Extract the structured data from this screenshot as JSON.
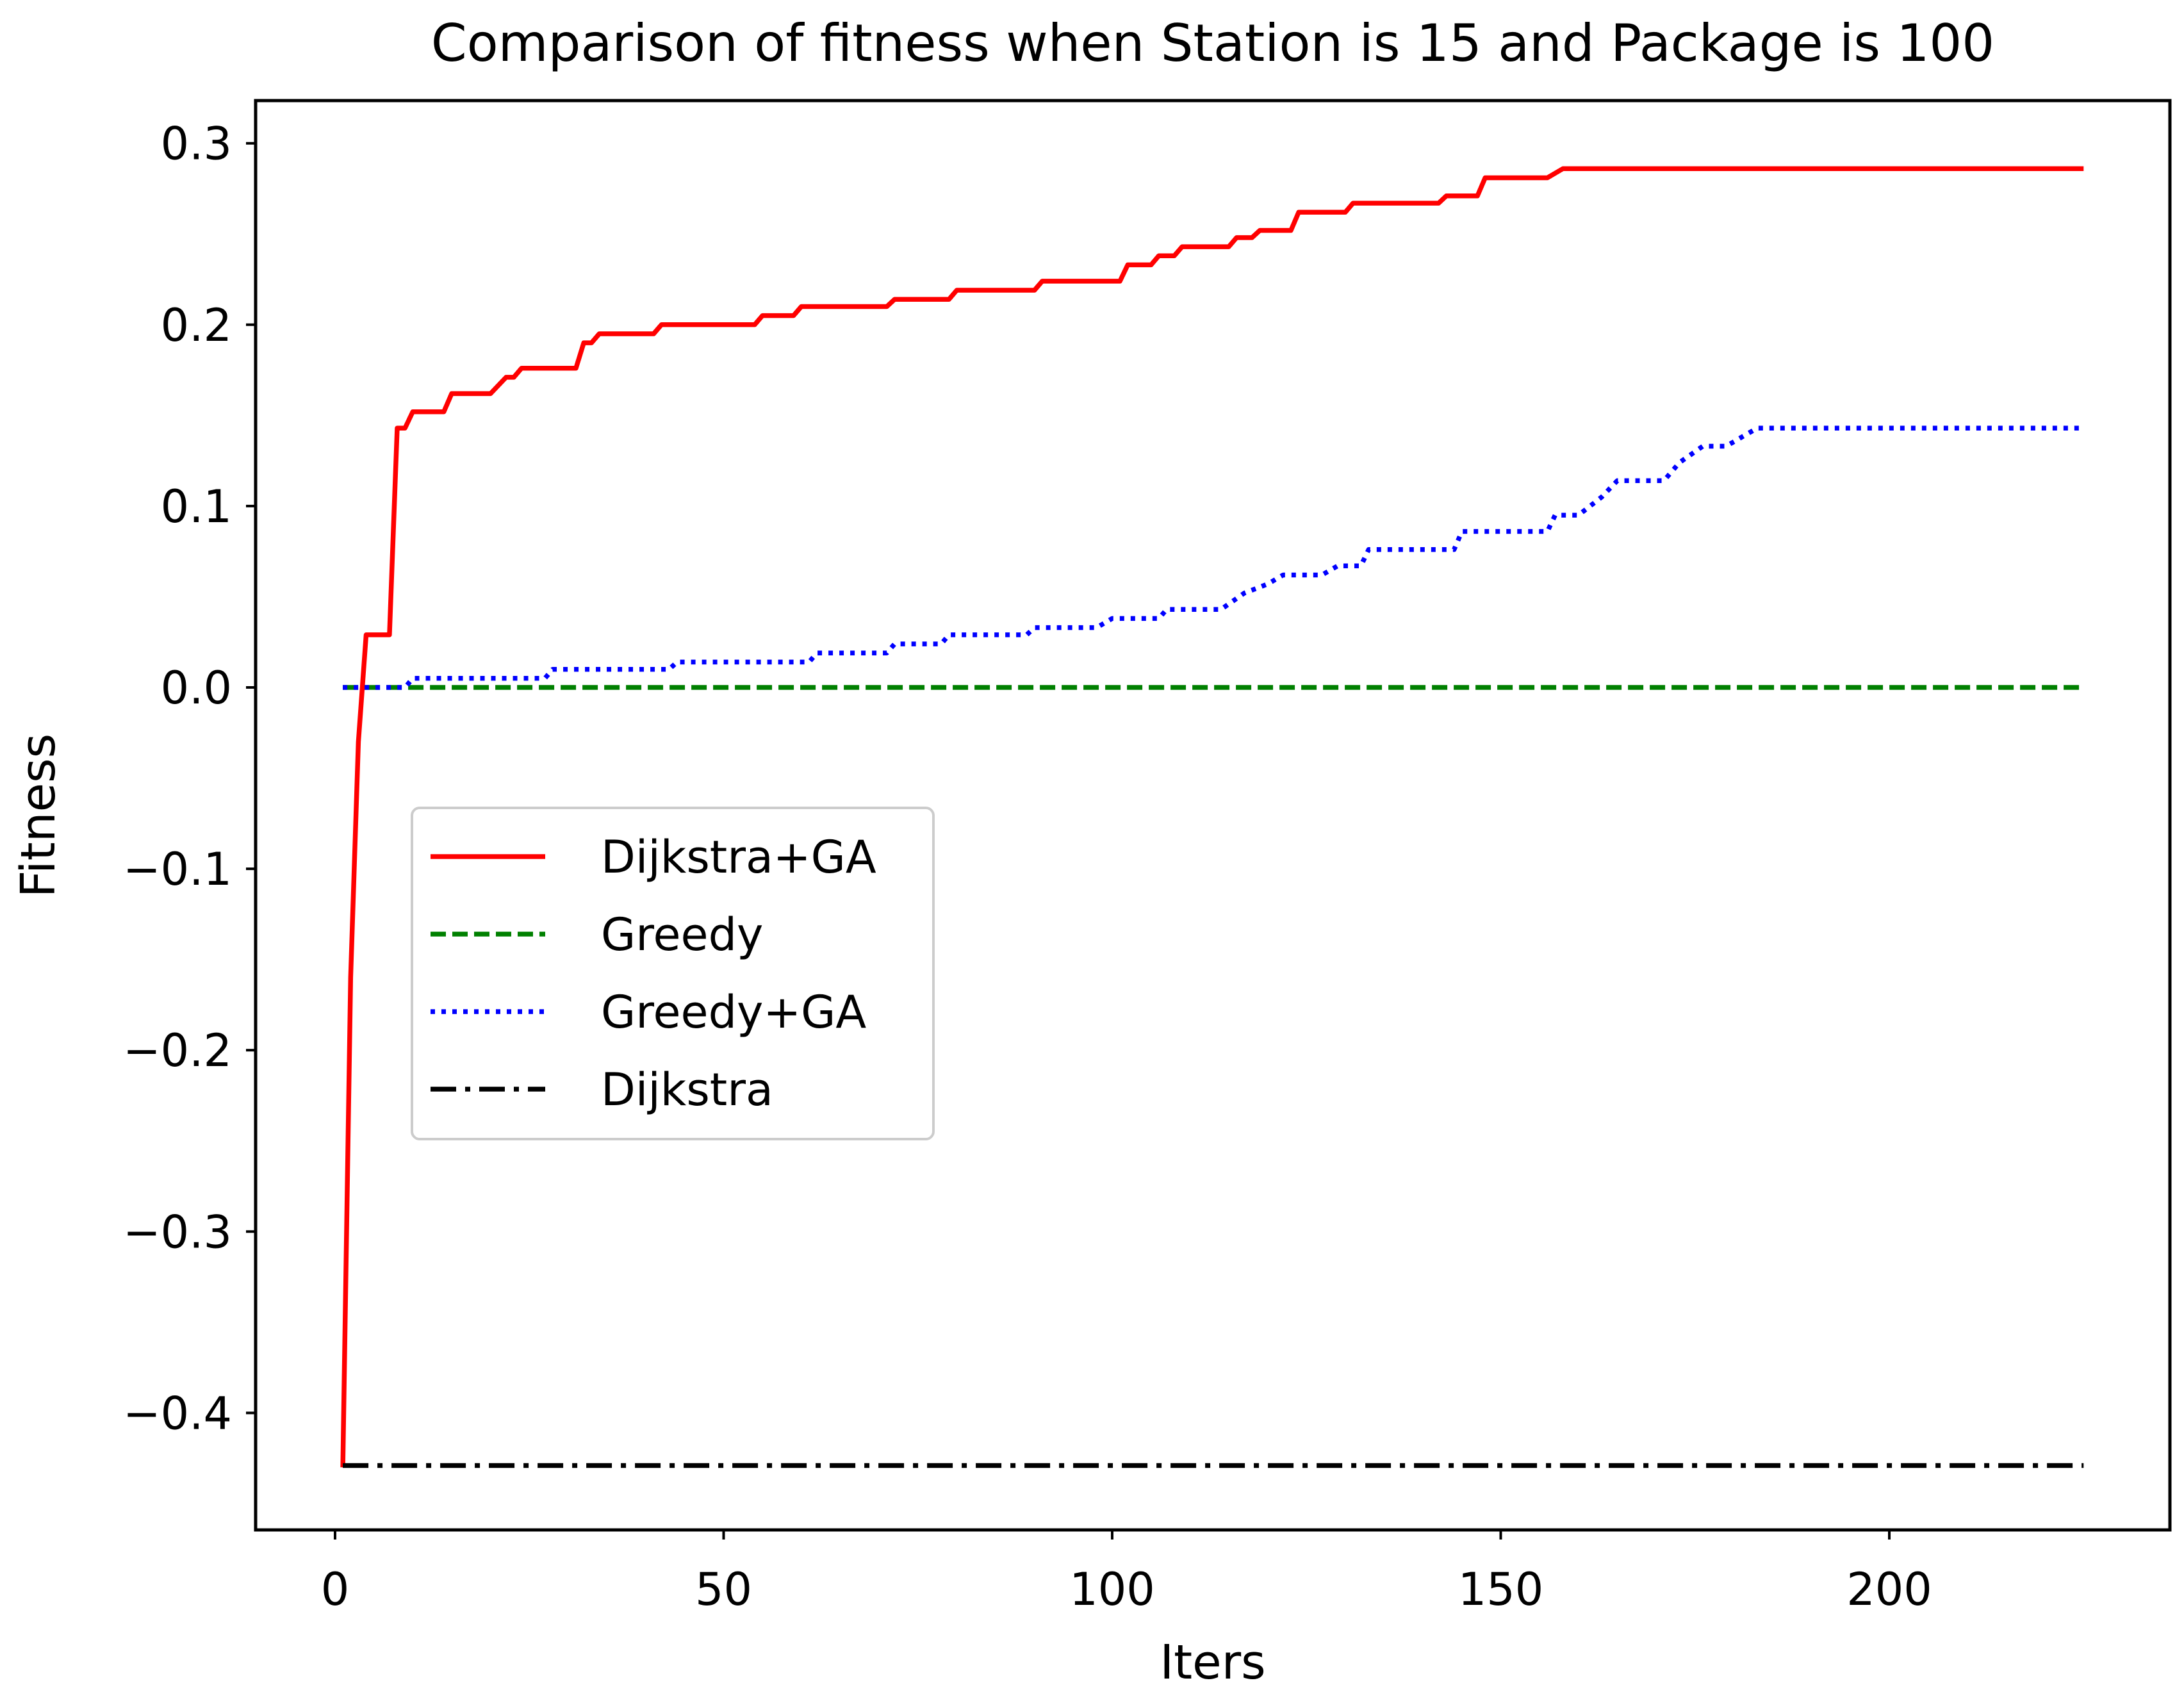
{
  "chart_data": {
    "type": "line",
    "title": "Comparison of fitness when Station is 15 and Package is 100",
    "xlabel": "Iters",
    "ylabel": "Fitness",
    "xlim": [
      -10,
      235
    ],
    "ylim": [
      -0.455,
      0.323
    ],
    "xticks": [
      0,
      50,
      100,
      150,
      200
    ],
    "xtick_labels": [
      "0",
      "50",
      "100",
      "150",
      "200"
    ],
    "yticks": [
      0.3,
      0.2,
      0.1,
      0.0,
      -0.1,
      -0.2,
      -0.3,
      -0.4
    ],
    "ytick_labels": [
      "0.3",
      "0.2",
      "0.1",
      "0.0",
      "−0.1",
      "−0.2",
      "−0.3",
      "−0.4"
    ],
    "grid": false,
    "legend_position": "center-left",
    "series": [
      {
        "name": "Dijkstra+GA",
        "color": "#ff0000",
        "style": "solid",
        "x": [
          1,
          2,
          3,
          4,
          7,
          8,
          9,
          10,
          14,
          15,
          20,
          22,
          23,
          24,
          31,
          32,
          33,
          34,
          41,
          42,
          54,
          55,
          59,
          60,
          71,
          72,
          79,
          80,
          90,
          91,
          101,
          102,
          105,
          106,
          108,
          109,
          115,
          116,
          118,
          119,
          123,
          124,
          130,
          131,
          142,
          143,
          147,
          148,
          156,
          158,
          225
        ],
        "y": [
          -0.43,
          -0.16,
          -0.03,
          0.029,
          0.029,
          0.143,
          0.143,
          0.152,
          0.152,
          0.162,
          0.162,
          0.171,
          0.171,
          0.176,
          0.176,
          0.19,
          0.19,
          0.195,
          0.195,
          0.2,
          0.2,
          0.205,
          0.205,
          0.21,
          0.21,
          0.214,
          0.214,
          0.219,
          0.219,
          0.224,
          0.224,
          0.233,
          0.233,
          0.238,
          0.238,
          0.243,
          0.243,
          0.248,
          0.248,
          0.252,
          0.252,
          0.262,
          0.262,
          0.267,
          0.267,
          0.271,
          0.271,
          0.281,
          0.281,
          0.286,
          0.286
        ]
      },
      {
        "name": "Greedy",
        "color": "#008000",
        "style": "dashed",
        "x": [
          1,
          225
        ],
        "y": [
          0.0,
          0.0
        ]
      },
      {
        "name": "Greedy+GA",
        "color": "#0000ff",
        "style": "dotted",
        "x": [
          1,
          9,
          10,
          27,
          28,
          43,
          44,
          61,
          62,
          71,
          72,
          78,
          79,
          89,
          90,
          98,
          100,
          106,
          107,
          114,
          117,
          120,
          122,
          127,
          129,
          132,
          133,
          144,
          145,
          156,
          157,
          160,
          163,
          165,
          171,
          173,
          176,
          179,
          183,
          225
        ],
        "y": [
          0,
          0,
          0.005,
          0.005,
          0.01,
          0.01,
          0.014,
          0.014,
          0.019,
          0.019,
          0.024,
          0.024,
          0.029,
          0.029,
          0.033,
          0.033,
          0.038,
          0.038,
          0.043,
          0.043,
          0.052,
          0.057,
          0.062,
          0.062,
          0.067,
          0.067,
          0.076,
          0.076,
          0.086,
          0.086,
          0.095,
          0.095,
          0.105,
          0.114,
          0.114,
          0.124,
          0.133,
          0.133,
          0.143,
          0.143
        ]
      },
      {
        "name": "Dijkstra",
        "color": "#000000",
        "style": "dashdot",
        "x": [
          1,
          225
        ],
        "y": [
          -0.429,
          -0.429
        ]
      }
    ]
  }
}
